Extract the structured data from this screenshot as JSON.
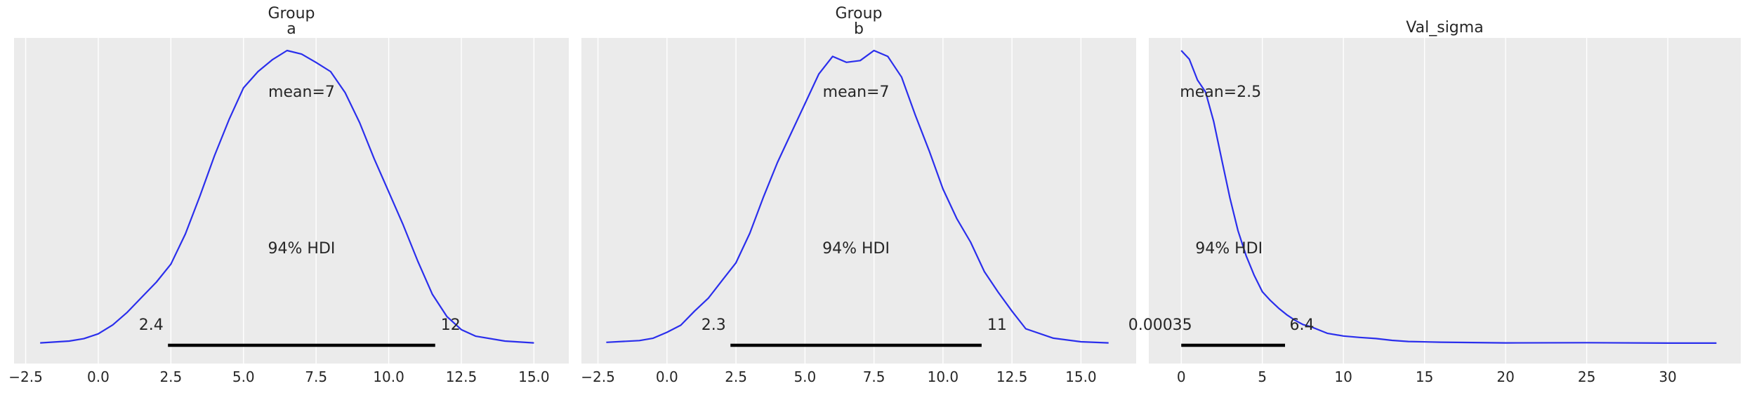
{
  "chart_data": [
    {
      "type": "area",
      "title_lines": [
        "Group",
        "a"
      ],
      "mean_label": "mean=7",
      "hdi_label": "94% HDI",
      "hdi_low": 2.4,
      "hdi_low_label": "2.4",
      "hdi_high": 11.6,
      "hdi_high_label": "12",
      "xlim": [
        -2.9,
        16.2
      ],
      "xticks": [
        -2.5,
        0.0,
        2.5,
        5.0,
        7.5,
        10.0,
        12.5,
        15.0
      ],
      "xtick_labels": [
        "−2.5",
        "0.0",
        "2.5",
        "5.0",
        "7.5",
        "10.0",
        "12.5",
        "15.0"
      ],
      "density_x": [
        -2.0,
        -1.0,
        -0.5,
        0.0,
        0.5,
        1.0,
        1.5,
        2.0,
        2.5,
        3.0,
        3.5,
        4.0,
        4.5,
        5.0,
        5.5,
        6.0,
        6.5,
        7.0,
        7.5,
        8.0,
        8.5,
        9.0,
        9.5,
        10.0,
        10.5,
        11.0,
        11.5,
        12.0,
        12.5,
        13.0,
        14.0,
        15.0
      ],
      "density_y": [
        0.004,
        0.007,
        0.011,
        0.019,
        0.034,
        0.055,
        0.08,
        0.105,
        0.135,
        0.185,
        0.248,
        0.315,
        0.375,
        0.428,
        0.455,
        0.475,
        0.49,
        0.484,
        0.47,
        0.455,
        0.42,
        0.37,
        0.31,
        0.255,
        0.2,
        0.14,
        0.085,
        0.048,
        0.026,
        0.015,
        0.007,
        0.004
      ]
    },
    {
      "type": "area",
      "title_lines": [
        "Group",
        "b"
      ],
      "mean_label": "mean=7",
      "hdi_label": "94% HDI",
      "hdi_low": 2.3,
      "hdi_low_label": "2.3",
      "hdi_high": 11.4,
      "hdi_high_label": "11",
      "xlim": [
        -3.1,
        17.0
      ],
      "xticks": [
        -2.5,
        0.0,
        2.5,
        5.0,
        7.5,
        10.0,
        12.5,
        15.0
      ],
      "xtick_labels": [
        "−2.5",
        "0.0",
        "2.5",
        "5.0",
        "7.5",
        "10.0",
        "12.5",
        "15.0"
      ],
      "density_x": [
        -2.2,
        -1.0,
        -0.5,
        0.0,
        0.5,
        1.0,
        1.5,
        2.0,
        2.5,
        3.0,
        3.5,
        4.0,
        4.5,
        5.0,
        5.5,
        6.0,
        6.5,
        7.0,
        7.5,
        8.0,
        8.5,
        9.0,
        9.5,
        10.0,
        10.5,
        11.0,
        11.5,
        12.0,
        12.5,
        13.0,
        14.0,
        15.0,
        16.0
      ],
      "density_y": [
        0.005,
        0.008,
        0.012,
        0.022,
        0.034,
        0.058,
        0.08,
        0.11,
        0.14,
        0.19,
        0.252,
        0.31,
        0.36,
        0.41,
        0.46,
        0.49,
        0.48,
        0.483,
        0.5,
        0.49,
        0.455,
        0.39,
        0.33,
        0.265,
        0.215,
        0.175,
        0.125,
        0.09,
        0.058,
        0.028,
        0.012,
        0.006,
        0.004
      ]
    },
    {
      "type": "area",
      "title_lines": [
        "Val_sigma"
      ],
      "mean_label": "mean=2.5",
      "hdi_label": "94% HDI",
      "hdi_low": 0.00035,
      "hdi_low_label": "0.00035",
      "hdi_high": 6.4,
      "hdi_high_label": "6.4",
      "xlim": [
        -2.0,
        34.5
      ],
      "xticks": [
        0,
        5,
        10,
        15,
        20,
        25,
        30
      ],
      "xtick_labels": [
        "0",
        "5",
        "10",
        "15",
        "20",
        "25",
        "30"
      ],
      "density_x": [
        0.0,
        0.5,
        1.0,
        1.5,
        2.0,
        2.5,
        3.0,
        3.5,
        4.0,
        4.5,
        5.0,
        5.5,
        6.0,
        6.5,
        7.0,
        7.5,
        8.0,
        9.0,
        10.0,
        11.0,
        12.0,
        13.0,
        14.0,
        16.0,
        20.0,
        25.0,
        30.0,
        33.0
      ],
      "density_y": [
        0.27,
        0.262,
        0.243,
        0.232,
        0.205,
        0.17,
        0.135,
        0.105,
        0.082,
        0.064,
        0.049,
        0.041,
        0.034,
        0.028,
        0.023,
        0.019,
        0.017,
        0.011,
        0.0085,
        0.0072,
        0.0062,
        0.0045,
        0.0035,
        0.0028,
        0.0022,
        0.0024,
        0.002,
        0.002
      ]
    }
  ]
}
